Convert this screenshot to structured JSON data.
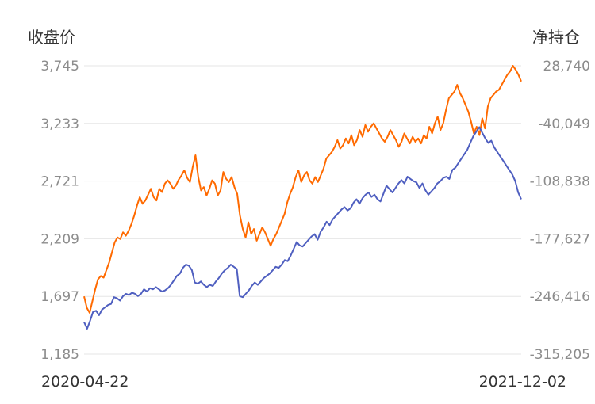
{
  "chart_data": {
    "type": "line",
    "left_axis_label": "收盘价",
    "right_axis_label": "净持仓",
    "x_start_label": "2020-04-22",
    "x_end_label": "2021-12-02",
    "left_ticks": [
      "1,185",
      "1,697",
      "2,209",
      "2,721",
      "3,233",
      "3,745"
    ],
    "right_ticks": [
      "-315,205",
      "-246,416",
      "-177,627",
      "-108,838",
      "-40,049",
      "28,740"
    ],
    "ylim_left": [
      1185,
      3745
    ],
    "ylim_right": [
      -315205,
      28740
    ],
    "grid": "horizontal",
    "series": [
      {
        "axis": "right",
        "color": "#ff6a00",
        "values": [
          -246416,
          -260000,
          -266000,
          -252000,
          -238000,
          -226000,
          -222000,
          -224000,
          -215000,
          -206000,
          -194000,
          -182000,
          -176000,
          -178000,
          -170000,
          -174000,
          -168000,
          -160000,
          -150000,
          -138000,
          -128000,
          -136000,
          -132000,
          -125000,
          -118000,
          -128000,
          -132000,
          -118000,
          -122000,
          -112000,
          -108000,
          -112000,
          -118000,
          -114000,
          -107000,
          -102000,
          -96000,
          -105000,
          -110000,
          -92000,
          -78000,
          -104000,
          -120000,
          -116000,
          -126000,
          -118000,
          -108000,
          -112000,
          -126000,
          -120000,
          -98000,
          -106000,
          -110000,
          -104000,
          -116000,
          -124000,
          -150000,
          -166000,
          -176000,
          -158000,
          -172000,
          -166000,
          -180000,
          -172000,
          -164000,
          -170000,
          -178000,
          -186000,
          -178000,
          -172000,
          -164000,
          -156000,
          -148000,
          -134000,
          -124000,
          -116000,
          -104000,
          -96000,
          -110000,
          -102000,
          -98000,
          -108000,
          -112000,
          -104000,
          -110000,
          -102000,
          -94000,
          -82000,
          -78000,
          -74000,
          -68000,
          -60000,
          -70000,
          -66000,
          -58000,
          -64000,
          -54000,
          -66000,
          -60000,
          -48000,
          -56000,
          -42000,
          -50000,
          -44000,
          -40000,
          -46000,
          -52000,
          -58000,
          -62000,
          -56000,
          -48000,
          -54000,
          -60000,
          -68000,
          -62000,
          -52000,
          -58000,
          -64000,
          -56000,
          -62000,
          -58000,
          -64000,
          -54000,
          -58000,
          -44000,
          -52000,
          -40000,
          -32000,
          -48000,
          -40000,
          -24000,
          -10000,
          -6000,
          -2000,
          6000,
          -4000,
          -10000,
          -18000,
          -26000,
          -38000,
          -52000,
          -44000,
          -54000,
          -34000,
          -46000,
          -20000,
          -10000,
          -6000,
          -2000,
          0,
          6000,
          12000,
          18000,
          22000,
          28740,
          24000,
          18000,
          10000
        ]
      },
      {
        "axis": "left",
        "color": "#4f5fc0",
        "values": [
          1470,
          1410,
          1480,
          1560,
          1570,
          1530,
          1580,
          1600,
          1620,
          1630,
          1690,
          1680,
          1660,
          1700,
          1720,
          1710,
          1730,
          1720,
          1700,
          1720,
          1760,
          1740,
          1770,
          1760,
          1780,
          1760,
          1740,
          1750,
          1770,
          1800,
          1840,
          1880,
          1900,
          1950,
          1980,
          1970,
          1930,
          1820,
          1810,
          1830,
          1800,
          1780,
          1800,
          1790,
          1830,
          1860,
          1900,
          1930,
          1950,
          1980,
          1960,
          1940,
          1700,
          1690,
          1720,
          1750,
          1790,
          1820,
          1800,
          1830,
          1860,
          1880,
          1900,
          1930,
          1960,
          1950,
          1980,
          2020,
          2010,
          2060,
          2120,
          2180,
          2150,
          2140,
          2170,
          2200,
          2230,
          2250,
          2200,
          2270,
          2310,
          2360,
          2330,
          2380,
          2410,
          2440,
          2470,
          2490,
          2460,
          2480,
          2530,
          2560,
          2520,
          2570,
          2600,
          2620,
          2580,
          2600,
          2560,
          2540,
          2610,
          2680,
          2650,
          2620,
          2660,
          2700,
          2730,
          2700,
          2760,
          2740,
          2720,
          2710,
          2660,
          2700,
          2640,
          2600,
          2630,
          2660,
          2700,
          2720,
          2750,
          2760,
          2740,
          2820,
          2840,
          2880,
          2920,
          2960,
          3000,
          3060,
          3120,
          3160,
          3200,
          3150,
          3100,
          3060,
          3080,
          3020,
          2980,
          2940,
          2900,
          2860,
          2820,
          2780,
          2720,
          2620,
          2560
        ]
      }
    ]
  }
}
